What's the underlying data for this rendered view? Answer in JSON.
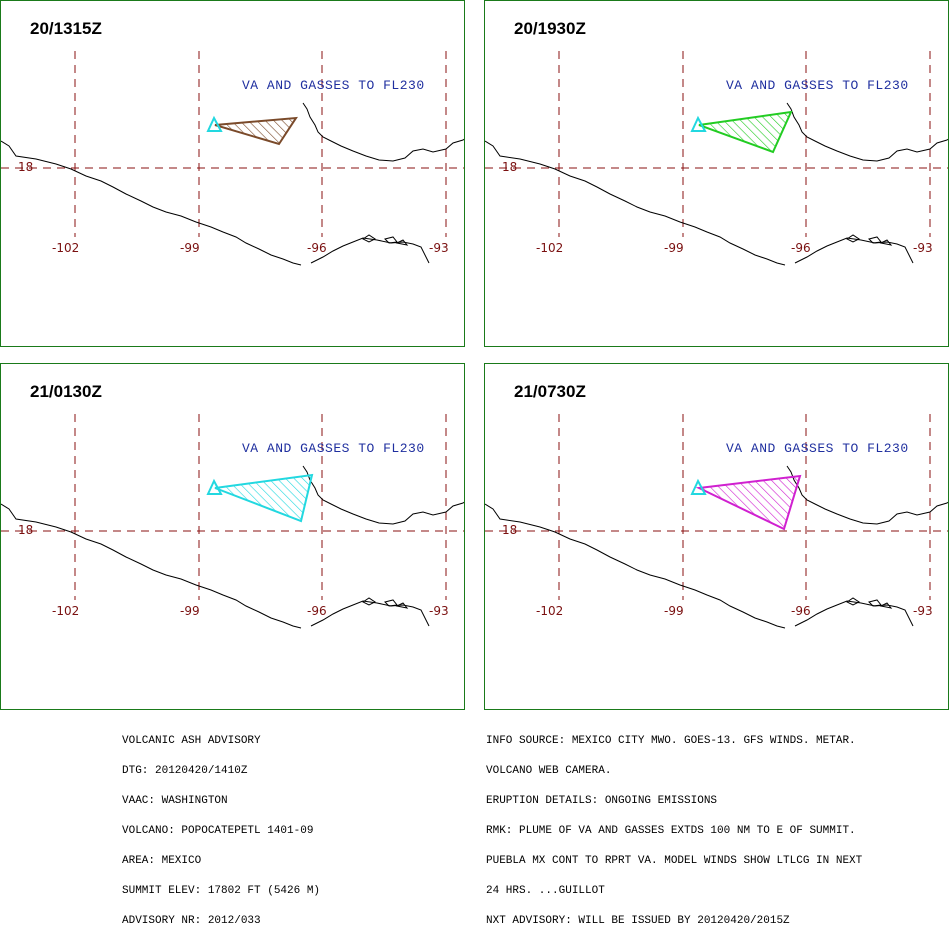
{
  "panels": [
    {
      "time": "20/1315Z",
      "va_text": "VA AND GASSES TO FL230",
      "plume_color": "#7a4a2a"
    },
    {
      "time": "20/1930Z",
      "va_text": "VA AND GASSES TO FL230",
      "plume_color": "#22cc22"
    },
    {
      "time": "21/0130Z",
      "va_text": "VA AND GASSES TO FL230",
      "plume_color": "#22d8e0"
    },
    {
      "time": "21/0730Z",
      "va_text": "VA AND GASSES TO FL230",
      "plume_color": "#d020d0"
    }
  ],
  "grid": {
    "lon_labels": [
      "-102",
      "-99",
      "-96",
      "-93"
    ],
    "lat_labels": [
      "18"
    ],
    "grid_color": "#8a1010",
    "volcano_color": "#22d8e0"
  },
  "advisory": {
    "left_lines": [
      "VOLCANIC ASH ADVISORY",
      "DTG: 20120420/1410Z",
      "VAAC: WASHINGTON",
      "VOLCANO: POPOCATEPETL 1401-09",
      "AREA: MEXICO",
      "SUMMIT ELEV: 17802 FT (5426 M)",
      "ADVISORY NR: 2012/033"
    ],
    "right_lines": [
      "INFO SOURCE: MEXICO CITY MWO. GOES-13. GFS WINDS. METAR.",
      "VOLCANO WEB CAMERA.",
      "ERUPTION DETAILS: ONGOING EMISSIONS",
      "RMK: PLUME OF VA AND GASSES EXTDS 100 NM TO E OF SUMMIT.",
      "PUEBLA MX CONT TO RPRT VA. MODEL WINDS SHOW LTLCG IN NEXT",
      "24 HRS. ...GUILLOT",
      "NXT ADVISORY: WILL BE ISSUED BY 20120420/2015Z"
    ]
  }
}
